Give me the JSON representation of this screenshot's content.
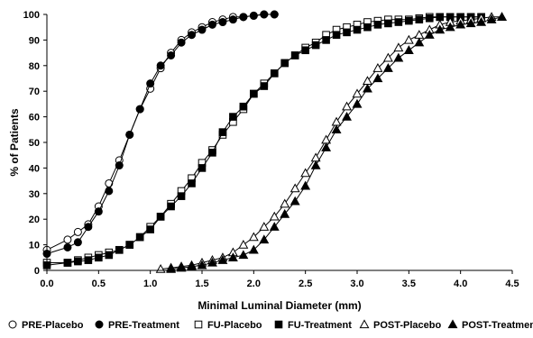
{
  "chart_data": {
    "type": "line",
    "xlabel": "Minimal Luminal Diameter (mm)",
    "ylabel": "% of Patients",
    "xlim": [
      0,
      4.5
    ],
    "ylim": [
      0,
      100
    ],
    "xticks": [
      "0.0",
      "0.5",
      "1.0",
      "1.5",
      "2.0",
      "2.5",
      "3.0",
      "3.5",
      "4.0",
      "4.5"
    ],
    "yticks": [
      "0",
      "10",
      "20",
      "30",
      "40",
      "50",
      "60",
      "70",
      "80",
      "90",
      "100"
    ],
    "grid": false,
    "legend_position": "bottom",
    "series": [
      {
        "name": "PRE-Placebo",
        "marker": "circle",
        "filled": false,
        "x": [
          0.0,
          0.2,
          0.3,
          0.4,
          0.5,
          0.6,
          0.7,
          0.8,
          0.9,
          1.0,
          1.1,
          1.2,
          1.3,
          1.4,
          1.5,
          1.6,
          1.7,
          1.8,
          1.9,
          2.0,
          2.1,
          2.2
        ],
        "y": [
          8,
          12,
          15,
          18,
          25,
          34,
          43,
          53,
          63,
          71,
          79,
          85,
          90,
          93,
          95,
          97,
          98,
          99,
          99,
          99.5,
          100,
          100
        ]
      },
      {
        "name": "PRE-Treatment",
        "marker": "circle",
        "filled": true,
        "x": [
          0.0,
          0.2,
          0.3,
          0.4,
          0.5,
          0.6,
          0.7,
          0.8,
          0.9,
          1.0,
          1.1,
          1.2,
          1.3,
          1.4,
          1.5,
          1.6,
          1.7,
          1.8,
          1.9,
          2.0,
          2.1,
          2.2
        ],
        "y": [
          6.5,
          9,
          11,
          17,
          23,
          31,
          41,
          53,
          63,
          73,
          80,
          84,
          89,
          92,
          94,
          96,
          97,
          98,
          99,
          99.5,
          100,
          100
        ]
      },
      {
        "name": "FU-Placebo",
        "marker": "square",
        "filled": false,
        "x": [
          0.0,
          0.2,
          0.3,
          0.4,
          0.5,
          0.6,
          0.7,
          0.8,
          0.9,
          1.0,
          1.1,
          1.2,
          1.3,
          1.4,
          1.5,
          1.6,
          1.7,
          1.8,
          1.9,
          2.0,
          2.1,
          2.2,
          2.3,
          2.4,
          2.5,
          2.6,
          2.7,
          2.8,
          2.9,
          3.0,
          3.1,
          3.2,
          3.3,
          3.4,
          3.5,
          3.6,
          3.7,
          3.8,
          3.9,
          4.0,
          4.1,
          4.2
        ],
        "y": [
          3,
          3,
          4,
          5,
          6,
          7,
          8,
          10,
          13,
          17,
          21,
          26,
          31,
          36,
          42,
          47,
          53,
          58,
          63,
          69,
          73,
          77,
          81,
          84,
          87,
          89,
          92,
          94,
          95,
          96,
          97,
          97.5,
          98,
          98,
          98,
          98.5,
          99,
          99,
          99,
          99,
          99,
          99
        ]
      },
      {
        "name": "FU-Treatment",
        "marker": "square",
        "filled": true,
        "x": [
          0.0,
          0.2,
          0.3,
          0.4,
          0.5,
          0.6,
          0.7,
          0.8,
          0.9,
          1.0,
          1.1,
          1.2,
          1.3,
          1.4,
          1.5,
          1.6,
          1.7,
          1.8,
          1.9,
          2.0,
          2.1,
          2.2,
          2.3,
          2.4,
          2.5,
          2.6,
          2.7,
          2.8,
          2.9,
          3.0,
          3.1,
          3.2,
          3.3,
          3.4,
          3.5,
          3.6,
          3.7,
          3.8,
          3.9,
          4.0,
          4.1,
          4.2
        ],
        "y": [
          2,
          3,
          3.5,
          4,
          5,
          6,
          8,
          10,
          13,
          16,
          21,
          25,
          29,
          34,
          40,
          46,
          54,
          60,
          64,
          69,
          72,
          77,
          81,
          84,
          86,
          88,
          90,
          92,
          93,
          94,
          95,
          96,
          96.5,
          97,
          97.5,
          98,
          98.5,
          99,
          99,
          99,
          99,
          99
        ]
      },
      {
        "name": "POST-Placebo",
        "marker": "triangle",
        "filled": false,
        "x": [
          1.1,
          1.2,
          1.3,
          1.4,
          1.5,
          1.6,
          1.7,
          1.8,
          1.9,
          2.0,
          2.1,
          2.2,
          2.3,
          2.4,
          2.5,
          2.6,
          2.7,
          2.8,
          2.9,
          3.0,
          3.1,
          3.2,
          3.3,
          3.4,
          3.5,
          3.6,
          3.7,
          3.8,
          3.9,
          4.0,
          4.1,
          4.2,
          4.3,
          4.4
        ],
        "y": [
          0.5,
          1,
          1.5,
          2,
          3,
          4,
          5,
          7,
          10,
          13,
          17,
          21,
          26,
          32,
          38,
          44,
          51,
          58,
          64,
          69,
          74,
          79,
          83,
          87,
          90,
          92,
          94,
          96,
          97,
          97.5,
          98,
          98.5,
          99,
          99
        ]
      },
      {
        "name": "POST-Treatment",
        "marker": "triangle",
        "filled": true,
        "x": [
          1.2,
          1.3,
          1.4,
          1.5,
          1.6,
          1.7,
          1.8,
          1.9,
          2.0,
          2.1,
          2.2,
          2.3,
          2.4,
          2.5,
          2.6,
          2.7,
          2.8,
          2.9,
          3.0,
          3.1,
          3.2,
          3.3,
          3.4,
          3.5,
          3.6,
          3.7,
          3.8,
          3.9,
          4.0,
          4.1,
          4.2,
          4.3,
          4.4
        ],
        "y": [
          0.5,
          1,
          1.5,
          2,
          3,
          4,
          5,
          6,
          8,
          12,
          17,
          22,
          27,
          33,
          41,
          48,
          55,
          60,
          65,
          71,
          75,
          79,
          83,
          86,
          89,
          92,
          94,
          95,
          96,
          96.5,
          97,
          98,
          99
        ]
      }
    ]
  }
}
